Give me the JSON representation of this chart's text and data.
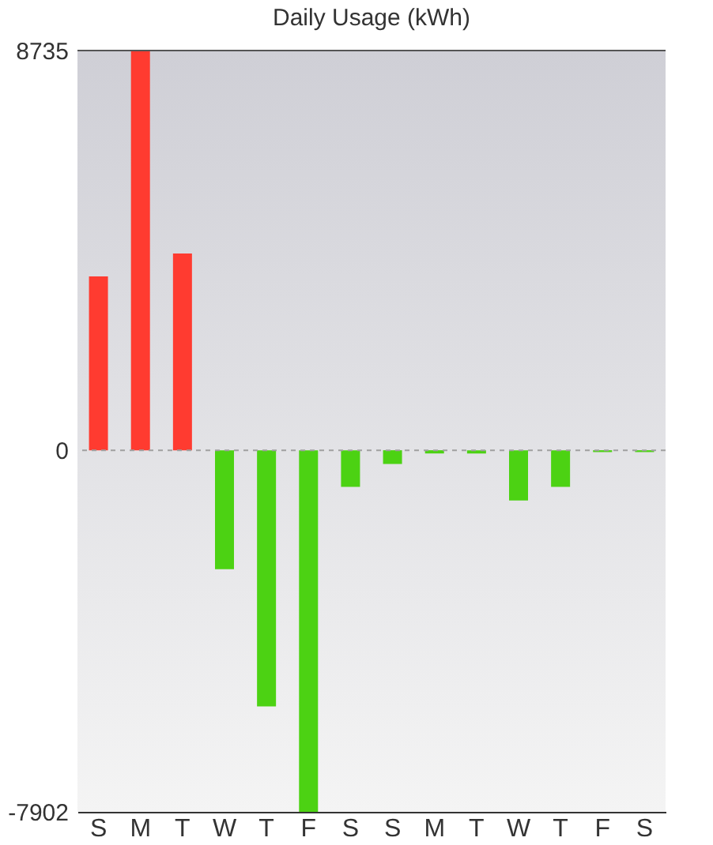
{
  "chart_data": {
    "type": "bar",
    "title": "Daily Usage (kWh)",
    "categories": [
      "S",
      "M",
      "T",
      "W",
      "T",
      "F",
      "S",
      "S",
      "M",
      "T",
      "W",
      "T",
      "F",
      "S"
    ],
    "values": [
      3800,
      8735,
      4300,
      -2600,
      -5600,
      -7902,
      -800,
      -300,
      -70,
      -70,
      -1100,
      -800,
      -40,
      -40
    ],
    "colors": [
      "#ff3b30",
      "#ff3b30",
      "#ff3b30",
      "#4cd213",
      "#4cd213",
      "#4cd213",
      "#4cd213",
      "#4cd213",
      "#4cd213",
      "#4cd213",
      "#4cd213",
      "#4cd213",
      "#4cd213",
      "#4cd213"
    ],
    "ylim": [
      -7902,
      8735
    ],
    "yticks": [
      -7902,
      0,
      8735
    ],
    "ref_lines": [
      {
        "axis": "y",
        "value": 0,
        "color": "#a0a0a0",
        "line_style": "dashed"
      }
    ]
  }
}
